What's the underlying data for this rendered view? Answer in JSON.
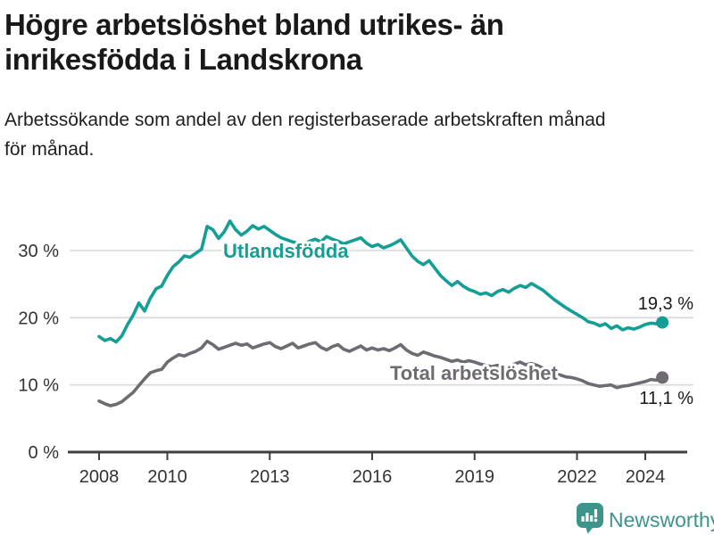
{
  "header": {
    "title_line1": "Högre arbetslöshet bland utrikes- än",
    "title_line2": "inrikesfödda i Landskrona",
    "subtitle_line1": "Arbetssökande som andel av den registerbaserade arbetskraften månad",
    "subtitle_line2": "för månad."
  },
  "chart_data": {
    "type": "line",
    "title": "Högre arbetslöshet bland utrikes- än inrikesfödda i Landskrona",
    "subtitle": "Arbetssökande som andel av den registerbaserade arbetskraften månad för månad.",
    "x_start_year": 2008,
    "x_step_years": 0.1667,
    "x_tick_years": [
      2008,
      2010,
      2013,
      2016,
      2019,
      2022,
      2024
    ],
    "y_ticks": [
      "0 %",
      "10 %",
      "20 %",
      "30 %"
    ],
    "y_tick_values": [
      0,
      10,
      20,
      30
    ],
    "ylim": [
      0,
      36
    ],
    "grid": "horizontal",
    "legend_position": "inline-labels",
    "series": [
      {
        "name": "Utlandsfödda",
        "color": "#149E96",
        "end_label": "19,3 %",
        "end_value": 19.3,
        "values": [
          17.2,
          16.6,
          16.9,
          16.4,
          17.3,
          19.0,
          20.4,
          22.2,
          21.0,
          22.9,
          24.3,
          24.7,
          26.3,
          27.6,
          28.3,
          29.2,
          29.0,
          29.6,
          30.2,
          33.6,
          33.1,
          31.8,
          32.8,
          34.4,
          33.1,
          32.3,
          32.9,
          33.7,
          33.2,
          33.6,
          33.0,
          32.4,
          31.9,
          31.6,
          31.3,
          31.1,
          31.0,
          31.4,
          31.7,
          31.3,
          32.1,
          31.7,
          31.4,
          31.0,
          31.3,
          31.6,
          31.9,
          31.1,
          30.6,
          30.9,
          30.4,
          30.7,
          31.1,
          31.6,
          30.4,
          29.2,
          28.4,
          27.9,
          28.5,
          27.4,
          26.3,
          25.5,
          24.8,
          25.4,
          24.7,
          24.2,
          23.9,
          23.5,
          23.7,
          23.3,
          23.9,
          24.2,
          23.8,
          24.4,
          24.8,
          24.5,
          25.1,
          24.6,
          24.1,
          23.4,
          22.7,
          22.1,
          21.5,
          21.0,
          20.5,
          20.0,
          19.4,
          19.2,
          18.8,
          19.1,
          18.4,
          18.8,
          18.2,
          18.5,
          18.3,
          18.6,
          19.0,
          19.2,
          19.1,
          19.3
        ]
      },
      {
        "name": "Total arbetslöshet",
        "color": "#6F6B72",
        "end_label": "11,1 %",
        "end_value": 11.1,
        "values": [
          7.6,
          7.2,
          6.9,
          7.1,
          7.5,
          8.2,
          8.9,
          9.9,
          10.9,
          11.8,
          12.1,
          12.3,
          13.4,
          14.0,
          14.5,
          14.3,
          14.7,
          15.0,
          15.5,
          16.5,
          16.0,
          15.3,
          15.6,
          15.9,
          16.2,
          15.9,
          16.1,
          15.5,
          15.8,
          16.1,
          16.3,
          15.7,
          15.4,
          15.8,
          16.2,
          15.5,
          15.8,
          16.1,
          16.3,
          15.6,
          15.2,
          15.7,
          16.0,
          15.3,
          15.0,
          15.4,
          15.8,
          15.2,
          15.5,
          15.2,
          15.4,
          15.1,
          15.5,
          16.0,
          15.2,
          14.7,
          14.4,
          14.9,
          14.6,
          14.3,
          14.1,
          13.8,
          13.5,
          13.7,
          13.4,
          13.6,
          13.4,
          13.1,
          12.9,
          12.7,
          12.9,
          12.8,
          12.7,
          13.1,
          13.4,
          13.0,
          13.2,
          12.9,
          12.5,
          12.1,
          11.8,
          11.5,
          11.2,
          11.1,
          10.9,
          10.6,
          10.2,
          10.0,
          9.8,
          9.9,
          10.0,
          9.6,
          9.8,
          9.9,
          10.1,
          10.3,
          10.5,
          10.8,
          10.7,
          11.1
        ]
      }
    ]
  },
  "footer": {
    "brand": "Newsworthy",
    "brand_color": "#3D948C",
    "logo_icon": "bar-chart-bubble-icon"
  }
}
